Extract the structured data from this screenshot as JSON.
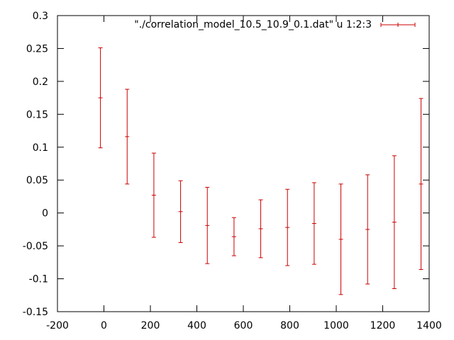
{
  "chart_data": {
    "type": "scatter",
    "style": "errorbars",
    "title": "",
    "xlabel": "",
    "ylabel": "",
    "xlim": [
      -200,
      1400
    ],
    "ylim": [
      -0.15,
      0.3
    ],
    "x_ticks": [
      -200,
      0,
      200,
      400,
      600,
      800,
      1000,
      1200,
      1400
    ],
    "y_ticks": [
      -0.15,
      -0.1,
      -0.05,
      0,
      0.05,
      0.1,
      0.15,
      0.2,
      0.25,
      0.3
    ],
    "x_tick_labels": [
      "-200",
      "0",
      "200",
      "400",
      "600",
      "800",
      "1000",
      "1200",
      "1400"
    ],
    "y_tick_labels": [
      "-0.15",
      "-0.1",
      "-0.05",
      "0",
      "0.05",
      "0.1",
      "0.15",
      "0.2",
      "0.25",
      "0.3"
    ],
    "grid": false,
    "legend_position": "top-right",
    "series": [
      {
        "name": "\"./correlation_model_10.5_10.9_0.1.dat\" u 1:2:3",
        "color": "#cc0000",
        "x": [
          -15,
          100,
          215,
          330,
          445,
          560,
          675,
          790,
          905,
          1020,
          1135,
          1250,
          1365
        ],
        "y": [
          0.175,
          0.116,
          0.027,
          0.002,
          -0.019,
          -0.036,
          -0.024,
          -0.022,
          -0.016,
          -0.04,
          -0.025,
          -0.014,
          0.044
        ],
        "err": [
          0.076,
          0.072,
          0.064,
          0.047,
          0.058,
          0.029,
          0.044,
          0.058,
          0.062,
          0.084,
          0.083,
          0.101,
          0.13
        ]
      }
    ]
  }
}
